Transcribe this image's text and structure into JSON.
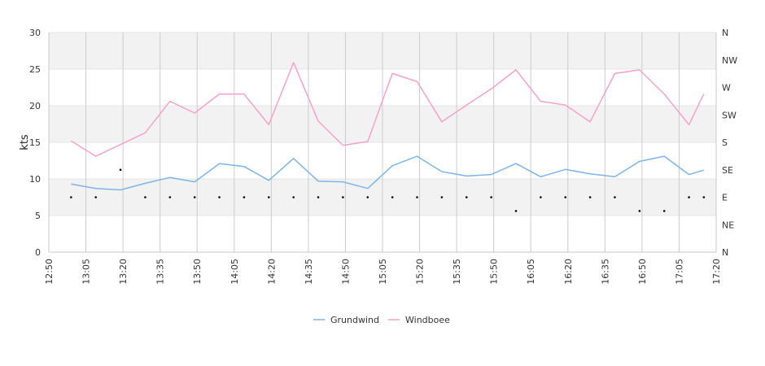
{
  "chart_data": {
    "type": "line",
    "ylabel": "kts",
    "ylim": [
      0,
      30
    ],
    "y_ticks": [
      "0",
      "5",
      "10",
      "15",
      "20",
      "25",
      "30"
    ],
    "y2_ticks": [
      "N",
      "NE",
      "E",
      "SE",
      "S",
      "SW",
      "W",
      "NW",
      "N"
    ],
    "x_ticks": [
      "12:50",
      "13:05",
      "13:20",
      "13:35",
      "13:50",
      "14:05",
      "14:20",
      "14:35",
      "14:50",
      "15:05",
      "15:20",
      "15:35",
      "15:50",
      "16:05",
      "16:20",
      "16:35",
      "16:50",
      "17:05",
      "17:20"
    ],
    "x": [
      "12:59",
      "13:09",
      "13:19",
      "13:29",
      "13:39",
      "13:49",
      "13:59",
      "14:09",
      "14:19",
      "14:29",
      "14:39",
      "14:49",
      "14:59",
      "15:09",
      "15:19",
      "15:29",
      "15:39",
      "15:49",
      "15:59",
      "16:09",
      "16:19",
      "16:29",
      "16:39",
      "16:49",
      "16:59",
      "17:09",
      "17:15"
    ],
    "series": [
      {
        "name": "Grundwind",
        "color": "#7cb5ec",
        "values": [
          9.3,
          8.7,
          8.5,
          9.4,
          10.2,
          9.6,
          12.1,
          11.7,
          9.8,
          12.8,
          9.7,
          9.6,
          8.7,
          11.8,
          13.1,
          11.0,
          10.4,
          10.6,
          12.1,
          10.3,
          11.3,
          10.7,
          10.3,
          12.4,
          13.1,
          10.6,
          11.2
        ]
      },
      {
        "name": "Windboee",
        "color": "#f7a1c9",
        "values": [
          15.2,
          13.1,
          14.7,
          16.3,
          20.6,
          19.0,
          21.6,
          21.6,
          17.4,
          25.9,
          17.9,
          14.6,
          15.1,
          24.4,
          23.3,
          17.8,
          20.1,
          22.3,
          24.9,
          20.6,
          20.1,
          17.8,
          24.4,
          24.9,
          21.6,
          17.4,
          21.6
        ]
      }
    ],
    "direction": {
      "marker_color": "#000000",
      "values": [
        "E",
        "E",
        "SE",
        "E",
        "E",
        "E",
        "E",
        "E",
        "E",
        "E",
        "E",
        "E",
        "E",
        "E",
        "E",
        "E",
        "E",
        "E",
        "ENE",
        "E",
        "E",
        "E",
        "E",
        "ENE",
        "ENE",
        "E",
        "E"
      ]
    },
    "legend_placement": "bottom-center",
    "grid": true,
    "band_colors": [
      "#f2f2f2",
      "#ffffff"
    ]
  }
}
